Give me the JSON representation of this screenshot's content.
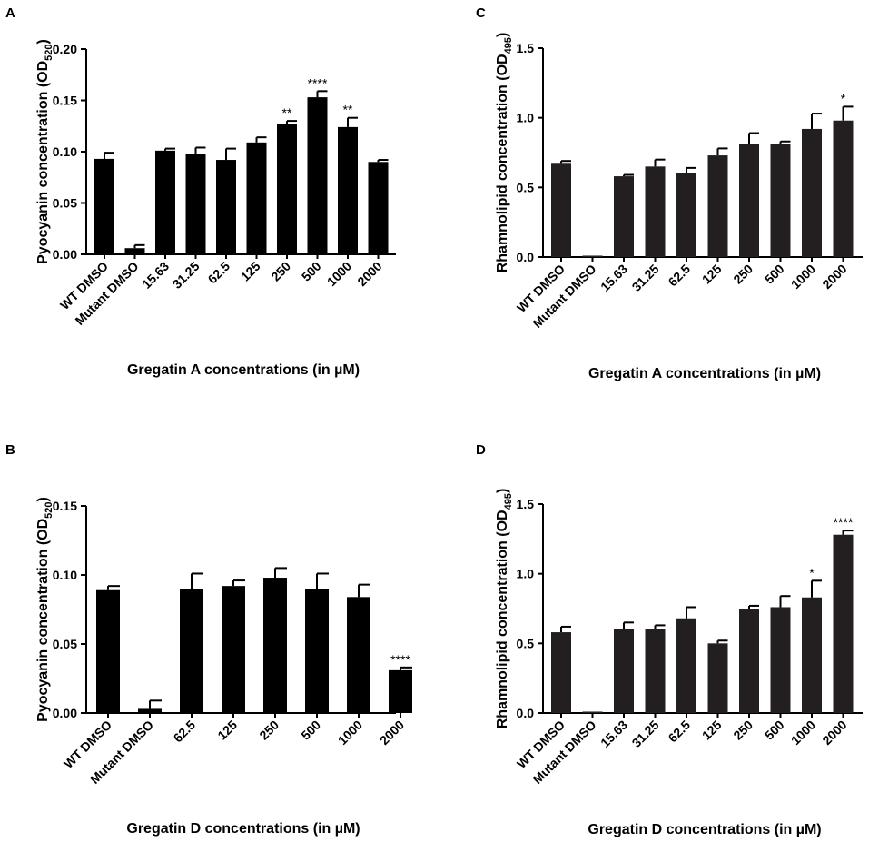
{
  "chart_data": [
    {
      "panel": "A",
      "type": "bar",
      "ylabel": "Pyocyanin concentration (OD",
      "ylabel_sub": "520",
      "ylabel_close": ")",
      "xlabel": "Gregatin A concentrations (in µM)",
      "ylim": [
        0,
        0.2
      ],
      "yticks": [
        "0.00",
        "0.05",
        "0.10",
        "0.15",
        "0.20"
      ],
      "ytick_values": [
        0,
        0.05,
        0.1,
        0.15,
        0.2
      ],
      "bar_color": "#000000",
      "categories": [
        "WT DMSO",
        "Mutant DMSO",
        "15.63",
        "31.25",
        "62.5",
        "125",
        "250",
        "500",
        "1000",
        "2000"
      ],
      "values": [
        0.093,
        0.006,
        0.101,
        0.098,
        0.092,
        0.109,
        0.127,
        0.153,
        0.124,
        0.09
      ],
      "errors": [
        0.006,
        0.003,
        0.002,
        0.006,
        0.011,
        0.005,
        0.003,
        0.006,
        0.009,
        0.002
      ],
      "annotations": [
        "",
        "",
        "",
        "",
        "",
        "",
        "**",
        "****",
        "**",
        ""
      ]
    },
    {
      "panel": "B",
      "type": "bar",
      "ylabel": "Pyocyanin concentration (OD",
      "ylabel_sub": "520",
      "ylabel_close": ")",
      "xlabel": "Gregatin D concentrations (in µM)",
      "ylim": [
        0,
        0.15
      ],
      "yticks": [
        "0.00",
        "0.05",
        "0.10",
        "0.15"
      ],
      "ytick_values": [
        0,
        0.05,
        0.1,
        0.15
      ],
      "bar_color": "#000000",
      "categories": [
        "WT DMSO",
        "Mutant DMSO",
        "62.5",
        "125",
        "250",
        "500",
        "1000",
        "2000"
      ],
      "values": [
        0.089,
        0.003,
        0.09,
        0.092,
        0.098,
        0.09,
        0.084,
        0.031
      ],
      "errors": [
        0.003,
        0.006,
        0.011,
        0.004,
        0.007,
        0.011,
        0.009,
        0.002
      ],
      "annotations": [
        "",
        "",
        "",
        "",
        "",
        "",
        "",
        "****"
      ]
    },
    {
      "panel": "C",
      "type": "bar",
      "ylabel": "Rhamnolipid concentration (OD",
      "ylabel_sub": "495",
      "ylabel_close": ")",
      "xlabel": "Gregatin A concentrations (in µM)",
      "ylim": [
        0,
        1.5
      ],
      "yticks": [
        "0.0",
        "0.5",
        "1.0",
        "1.5"
      ],
      "ytick_values": [
        0,
        0.5,
        1.0,
        1.5
      ],
      "bar_color": "#231f20",
      "categories": [
        "WT DMSO",
        "Mutant DMSO",
        "15.63",
        "31.25",
        "62.5",
        "125",
        "250",
        "500",
        "1000",
        "2000"
      ],
      "values": [
        0.67,
        0.01,
        0.58,
        0.65,
        0.6,
        0.73,
        0.81,
        0.81,
        0.92,
        0.98
      ],
      "errors": [
        0.02,
        0.0,
        0.01,
        0.05,
        0.04,
        0.05,
        0.08,
        0.02,
        0.11,
        0.1
      ],
      "annotations": [
        "",
        "",
        "",
        "",
        "",
        "",
        "",
        "",
        "",
        "*"
      ]
    },
    {
      "panel": "D",
      "type": "bar",
      "ylabel": "Rhamnolipid concentration (OD",
      "ylabel_sub": "495",
      "ylabel_close": ")",
      "xlabel": "Gregatin D concentrations (in µM)",
      "ylim": [
        0,
        1.5
      ],
      "yticks": [
        "0.0",
        "0.5",
        "1.0",
        "1.5"
      ],
      "ytick_values": [
        0,
        0.5,
        1.0,
        1.5
      ],
      "bar_color": "#231f20",
      "categories": [
        "WT DMSO",
        "Mutant DMSO",
        "15.63",
        "31.25",
        "62.5",
        "125",
        "250",
        "500",
        "1000",
        "2000"
      ],
      "values": [
        0.58,
        0.01,
        0.6,
        0.6,
        0.68,
        0.5,
        0.75,
        0.76,
        0.83,
        1.28
      ],
      "errors": [
        0.04,
        0.0,
        0.05,
        0.03,
        0.08,
        0.02,
        0.02,
        0.08,
        0.12,
        0.03
      ],
      "annotations": [
        "",
        "",
        "",
        "",
        "",
        "",
        "",
        "",
        "*",
        "****"
      ]
    }
  ]
}
